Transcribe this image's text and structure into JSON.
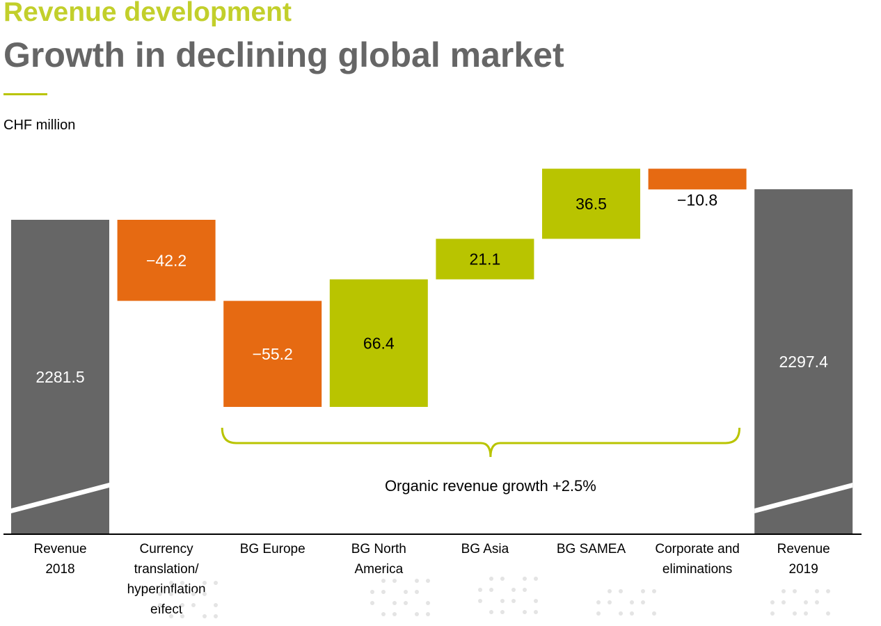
{
  "header": {
    "kicker": "Revenue development",
    "title": "Growth in declining global market",
    "unit": "CHF million"
  },
  "colors": {
    "total": "#666666",
    "negative": "#e66a12",
    "positive": "#b9c400",
    "kicker": "#c2cf2b",
    "title": "#666666"
  },
  "chart_data": {
    "type": "bar",
    "subtype": "waterfall",
    "title": "Growth in declining global market",
    "ylabel": "CHF million",
    "categories": [
      [
        "Revenue",
        "2018"
      ],
      [
        "Currency",
        "translation/",
        "hyperinflation",
        "effect"
      ],
      [
        "BG Europe"
      ],
      [
        "BG North",
        "America"
      ],
      [
        "BG Asia"
      ],
      [
        "BG SAMEA"
      ],
      [
        "Corporate and",
        "eliminations"
      ],
      [
        "Revenue",
        "2019"
      ]
    ],
    "steps": [
      {
        "kind": "total",
        "value": 2281.5,
        "label": "2281.5"
      },
      {
        "kind": "delta",
        "value": -42.2,
        "label": "−42.2"
      },
      {
        "kind": "delta",
        "value": -55.2,
        "label": "−55.2"
      },
      {
        "kind": "delta",
        "value": 66.4,
        "label": "66.4"
      },
      {
        "kind": "delta",
        "value": 21.1,
        "label": "21.1"
      },
      {
        "kind": "delta",
        "value": 36.5,
        "label": "36.5"
      },
      {
        "kind": "delta",
        "value": -10.8,
        "label": "−10.8"
      },
      {
        "kind": "total",
        "value": 2297.4,
        "label": "2297.4"
      }
    ],
    "axis_break": true,
    "bracket": {
      "from_step": 2,
      "to_step": 6,
      "label": "Organic revenue growth +2.5%"
    }
  }
}
